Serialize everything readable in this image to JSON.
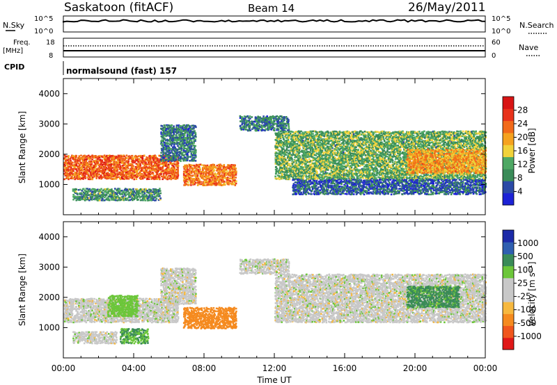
{
  "header": {
    "station": "Saskatoon (fitACF)",
    "beam": "Beam 14",
    "date": "26/May/2011"
  },
  "strip_panels": {
    "nsky": {
      "left_label": "N.Sky",
      "right_label": "N.Search",
      "left_ticks": [
        "10^5",
        "10^0"
      ],
      "right_ticks": [
        "10^5",
        "10^0"
      ]
    },
    "freq": {
      "left_label_1": "Freq.",
      "left_label_2": "[MHz]",
      "left_ticks": [
        "18",
        "8"
      ],
      "right_label": "Nave",
      "right_ticks": [
        "60",
        "0"
      ]
    },
    "cpid": {
      "label": "CPID",
      "text": "normalsound (fast) 157"
    }
  },
  "colors": {
    "power": [
      "#1c22d6",
      "#2b4aa6",
      "#3a8b58",
      "#4ea864",
      "#f1d23a",
      "#f5a21f",
      "#f26a1a",
      "#e8321b",
      "#d81414"
    ],
    "velocity": [
      "#e01818",
      "#f0561d",
      "#f58a1f",
      "#f6b83f",
      "#c8c8c8",
      "#c8c8c8",
      "#6cc63a",
      "#3a8b58",
      "#2f5fb0",
      "#1c2aa8"
    ]
  },
  "chart_data": [
    {
      "type": "heatmap",
      "title": "",
      "xlabel": "",
      "ylabel": "Slant Range [km]",
      "xlim": [
        "00:00",
        "24:00"
      ],
      "ylim": [
        0,
        4500
      ],
      "yticks": [
        "1000",
        "2000",
        "3000",
        "4000"
      ],
      "colorbar": {
        "label": "Power [dB]",
        "ticks": [
          "4",
          "8",
          "12",
          "16",
          "20",
          "24",
          "28"
        ],
        "range": [
          0,
          32
        ]
      },
      "echo_regions": [
        {
          "t_start": 0.0,
          "t_end": 6.5,
          "range_start": 1200,
          "range_end": 2000,
          "power_db": 24
        },
        {
          "t_start": 0.5,
          "t_end": 5.5,
          "range_start": 500,
          "range_end": 900,
          "power_db": 10
        },
        {
          "t_start": 6.8,
          "t_end": 9.8,
          "range_start": 1000,
          "range_end": 1700,
          "power_db": 22
        },
        {
          "t_start": 5.5,
          "t_end": 7.5,
          "range_start": 1800,
          "range_end": 3000,
          "power_db": 8
        },
        {
          "t_start": 10.0,
          "t_end": 12.8,
          "range_start": 2800,
          "range_end": 3300,
          "power_db": 8
        },
        {
          "t_start": 12.0,
          "t_end": 24.0,
          "range_start": 1200,
          "range_end": 2800,
          "power_db": 12
        },
        {
          "t_start": 13.0,
          "t_end": 24.0,
          "range_start": 700,
          "range_end": 1200,
          "power_db": 6
        },
        {
          "t_start": 19.5,
          "t_end": 24.0,
          "range_start": 1400,
          "range_end": 2200,
          "power_db": 20
        }
      ]
    },
    {
      "type": "heatmap",
      "title": "",
      "xlabel": "Time UT",
      "ylabel": "Slant Range [km]",
      "xlim": [
        "00:00",
        "24:00"
      ],
      "ylim": [
        0,
        4500
      ],
      "xticks": [
        "00:00",
        "04:00",
        "08:00",
        "12:00",
        "16:00",
        "20:00",
        "00:00"
      ],
      "yticks": [
        "1000",
        "2000",
        "3000",
        "4000"
      ],
      "colorbar": {
        "label": "Velocity [m s⁻¹]",
        "ticks": [
          "1000",
          "500",
          "100",
          "25",
          "-25",
          "-100",
          "-500",
          "-1000"
        ]
      },
      "echo_regions": [
        {
          "t_start": 0.0,
          "t_end": 6.5,
          "range_start": 1200,
          "range_end": 2000,
          "velocity": 0
        },
        {
          "t_start": 0.5,
          "t_end": 3.0,
          "range_start": 500,
          "range_end": 900,
          "velocity": 0
        },
        {
          "t_start": 3.2,
          "t_end": 4.8,
          "range_start": 500,
          "range_end": 1000,
          "velocity": 100
        },
        {
          "t_start": 2.5,
          "t_end": 4.2,
          "range_start": 1400,
          "range_end": 2100,
          "velocity": 60
        },
        {
          "t_start": 6.8,
          "t_end": 9.8,
          "range_start": 1000,
          "range_end": 1700,
          "velocity": -300
        },
        {
          "t_start": 5.5,
          "t_end": 7.5,
          "range_start": 1800,
          "range_end": 3000,
          "velocity": 0
        },
        {
          "t_start": 10.0,
          "t_end": 12.8,
          "range_start": 2800,
          "range_end": 3300,
          "velocity": 0
        },
        {
          "t_start": 12.0,
          "t_end": 24.0,
          "range_start": 1200,
          "range_end": 2800,
          "velocity": 0
        },
        {
          "t_start": 19.5,
          "t_end": 22.5,
          "range_start": 1700,
          "range_end": 2400,
          "velocity": 120
        }
      ]
    }
  ]
}
